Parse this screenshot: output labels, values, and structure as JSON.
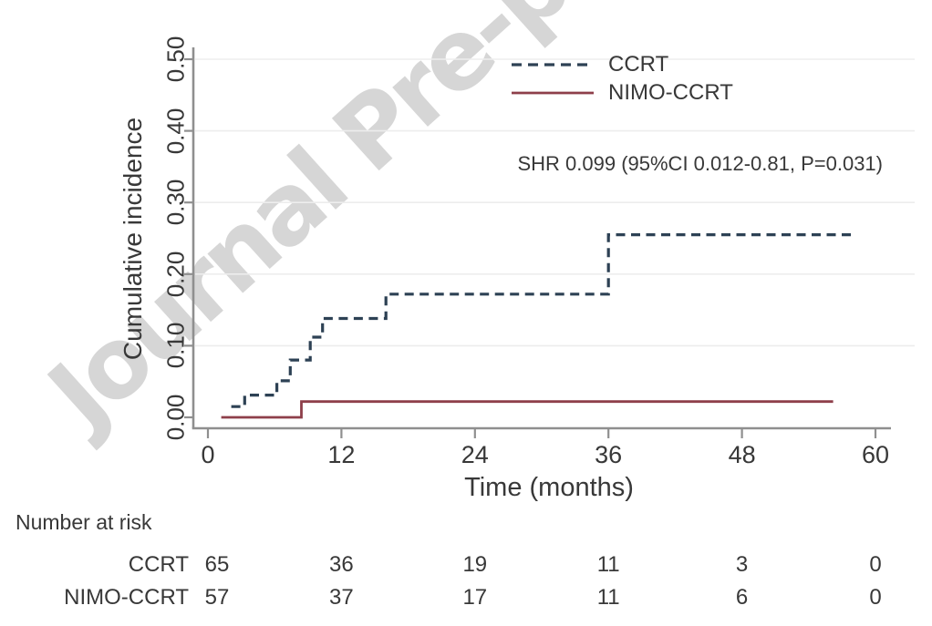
{
  "watermark": {
    "text": "Journal Pre-proof"
  },
  "chart_data": {
    "type": "line",
    "subtype": "cumulative-incidence-step-curves",
    "title": "",
    "xlabel": "Time (months)",
    "ylabel": "Cumulative incidence",
    "xlim": [
      0,
      60
    ],
    "ylim": [
      0,
      0.5
    ],
    "x_ticks": [
      "0",
      "12",
      "24",
      "36",
      "48",
      "60"
    ],
    "y_ticks": [
      "0.00",
      "0.10",
      "0.20",
      "0.30",
      "0.40",
      "0.50"
    ],
    "grid": "horizontal-light",
    "legend_position": "top-right",
    "annotation": "SHR 0.099 (95%CI 0.012-0.81, P=0.031)",
    "legend": [
      {
        "label": "CCRT",
        "style": "dashed",
        "color": "#2d4154"
      },
      {
        "label": "NIMO-CCRT",
        "style": "solid",
        "color": "#8e3f4a"
      }
    ],
    "series": [
      {
        "name": "CCRT",
        "line": "dashed",
        "color": "#2d4154",
        "start": [
          2.1,
          0.015
        ],
        "steps": [
          [
            3.3,
            0.031
          ],
          [
            6.2,
            0.051
          ],
          [
            7.4,
            0.08
          ],
          [
            9.2,
            0.112
          ],
          [
            10.3,
            0.138
          ],
          [
            16,
            0.172
          ],
          [
            36,
            0.255
          ]
        ],
        "end": 57.8
      },
      {
        "name": "NIMO-CCRT",
        "line": "solid",
        "color": "#8e3f4a",
        "start": [
          1.2,
          0.0
        ],
        "steps": [
          [
            8.4,
            0.022
          ]
        ],
        "end": 56.2
      }
    ]
  },
  "risk_table": {
    "header": "Number at risk",
    "times": [
      0,
      12,
      24,
      36,
      48,
      60
    ],
    "rows": [
      {
        "label": "CCRT",
        "values": [
          "65",
          "36",
          "19",
          "11",
          "3",
          "0"
        ]
      },
      {
        "label": "NIMO-CCRT",
        "values": [
          "57",
          "37",
          "17",
          "11",
          "6",
          "0"
        ]
      }
    ]
  }
}
